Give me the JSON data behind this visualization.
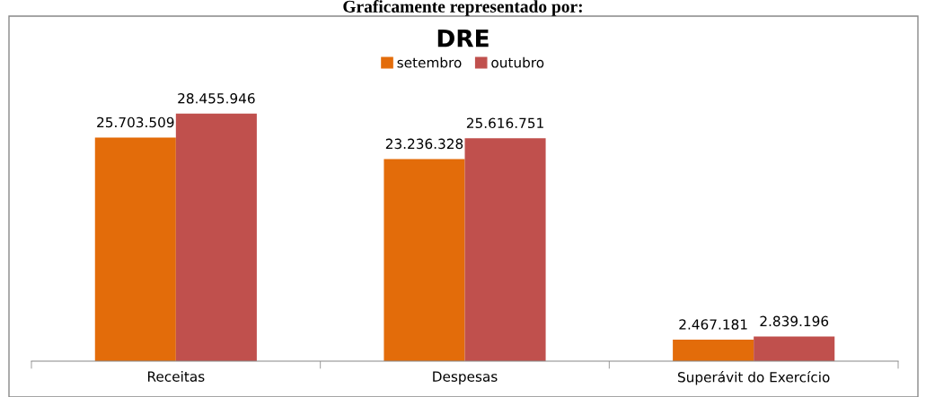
{
  "chart_data": {
    "type": "bar",
    "title": "DRE",
    "categories": [
      "Receitas",
      "Despesas",
      "Superávit do Exercício"
    ],
    "series": [
      {
        "name": "setembro",
        "color": "#e36c0a",
        "values": [
          25703509,
          23236328,
          2467181
        ],
        "value_labels": [
          "25.703.509",
          "23.236.328",
          "2.467.181"
        ]
      },
      {
        "name": "outubro",
        "color": "#c0504d",
        "values": [
          28455946,
          25616751,
          2839196
        ],
        "value_labels": [
          "28.455.946",
          "25.616.751",
          "2.839.196"
        ]
      }
    ],
    "legend": "top",
    "annotations": [
      "Graficamente representado por:"
    ]
  }
}
